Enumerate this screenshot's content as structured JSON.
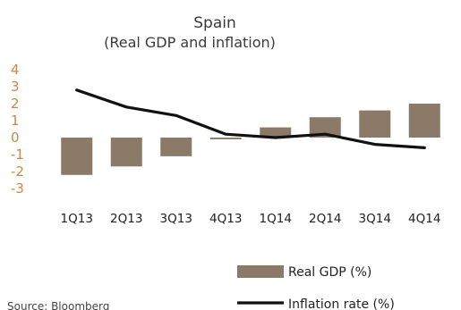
{
  "chart_data": {
    "type": "bar",
    "title": "Spain",
    "subtitle": "(Real GDP and inflation)",
    "categories": [
      "1Q13",
      "2Q13",
      "3Q13",
      "4Q13",
      "1Q14",
      "2Q14",
      "3Q14",
      "4Q14"
    ],
    "y_ticks": [
      "4",
      "3",
      "2",
      "1",
      "0",
      "-1",
      "-2",
      "-3"
    ],
    "ylim": [
      -3,
      4
    ],
    "grid": false,
    "legend_position": "bottom-right",
    "series": [
      {
        "name": "Real GDP (%)",
        "kind": "bar",
        "color": "#8c7a69",
        "values": [
          -2.2,
          -1.7,
          -1.1,
          -0.1,
          0.6,
          1.2,
          1.6,
          2.0
        ]
      },
      {
        "name": "Inflation rate (%)",
        "kind": "line",
        "color": "#111111",
        "values": [
          2.8,
          1.8,
          1.3,
          0.2,
          0.0,
          0.2,
          -0.4,
          -0.6
        ]
      }
    ],
    "source": "Source: Bloomberg"
  }
}
